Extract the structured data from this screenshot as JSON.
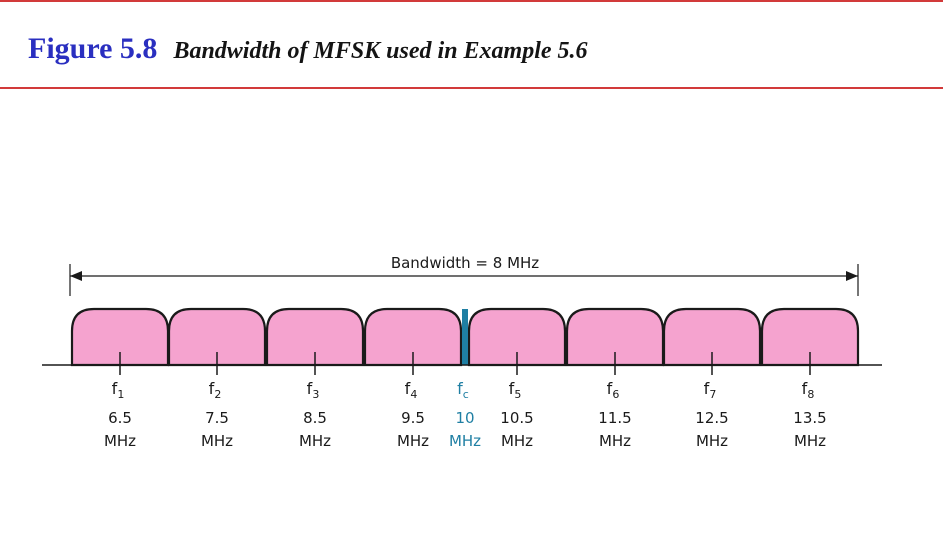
{
  "header": {
    "figure_number": "Figure 5.8",
    "caption": "Bandwidth of MFSK used in Example 5.6"
  },
  "bandwidth_label": "Bandwidth = 8 MHz",
  "colors": {
    "band_fill": "#f5a3cf",
    "band_stroke": "#1a1a1a",
    "carrier": "#1f7fa3",
    "rule": "#d23a3a",
    "figure_number": "#2a2fc0"
  },
  "carriers": [
    {
      "symbol": "f",
      "sub": "1",
      "value": "6.5",
      "unit": "MHz"
    },
    {
      "symbol": "f",
      "sub": "2",
      "value": "7.5",
      "unit": "MHz"
    },
    {
      "symbol": "f",
      "sub": "3",
      "value": "8.5",
      "unit": "MHz"
    },
    {
      "symbol": "f",
      "sub": "4",
      "value": "9.5",
      "unit": "MHz"
    },
    {
      "symbol": "f",
      "sub": "5",
      "value": "10.5",
      "unit": "MHz"
    },
    {
      "symbol": "f",
      "sub": "6",
      "value": "11.5",
      "unit": "MHz"
    },
    {
      "symbol": "f",
      "sub": "7",
      "value": "12.5",
      "unit": "MHz"
    },
    {
      "symbol": "f",
      "sub": "8",
      "value": "13.5",
      "unit": "MHz"
    }
  ],
  "center": {
    "symbol": "f",
    "sub": "c",
    "value": "10",
    "unit": "MHz"
  }
}
